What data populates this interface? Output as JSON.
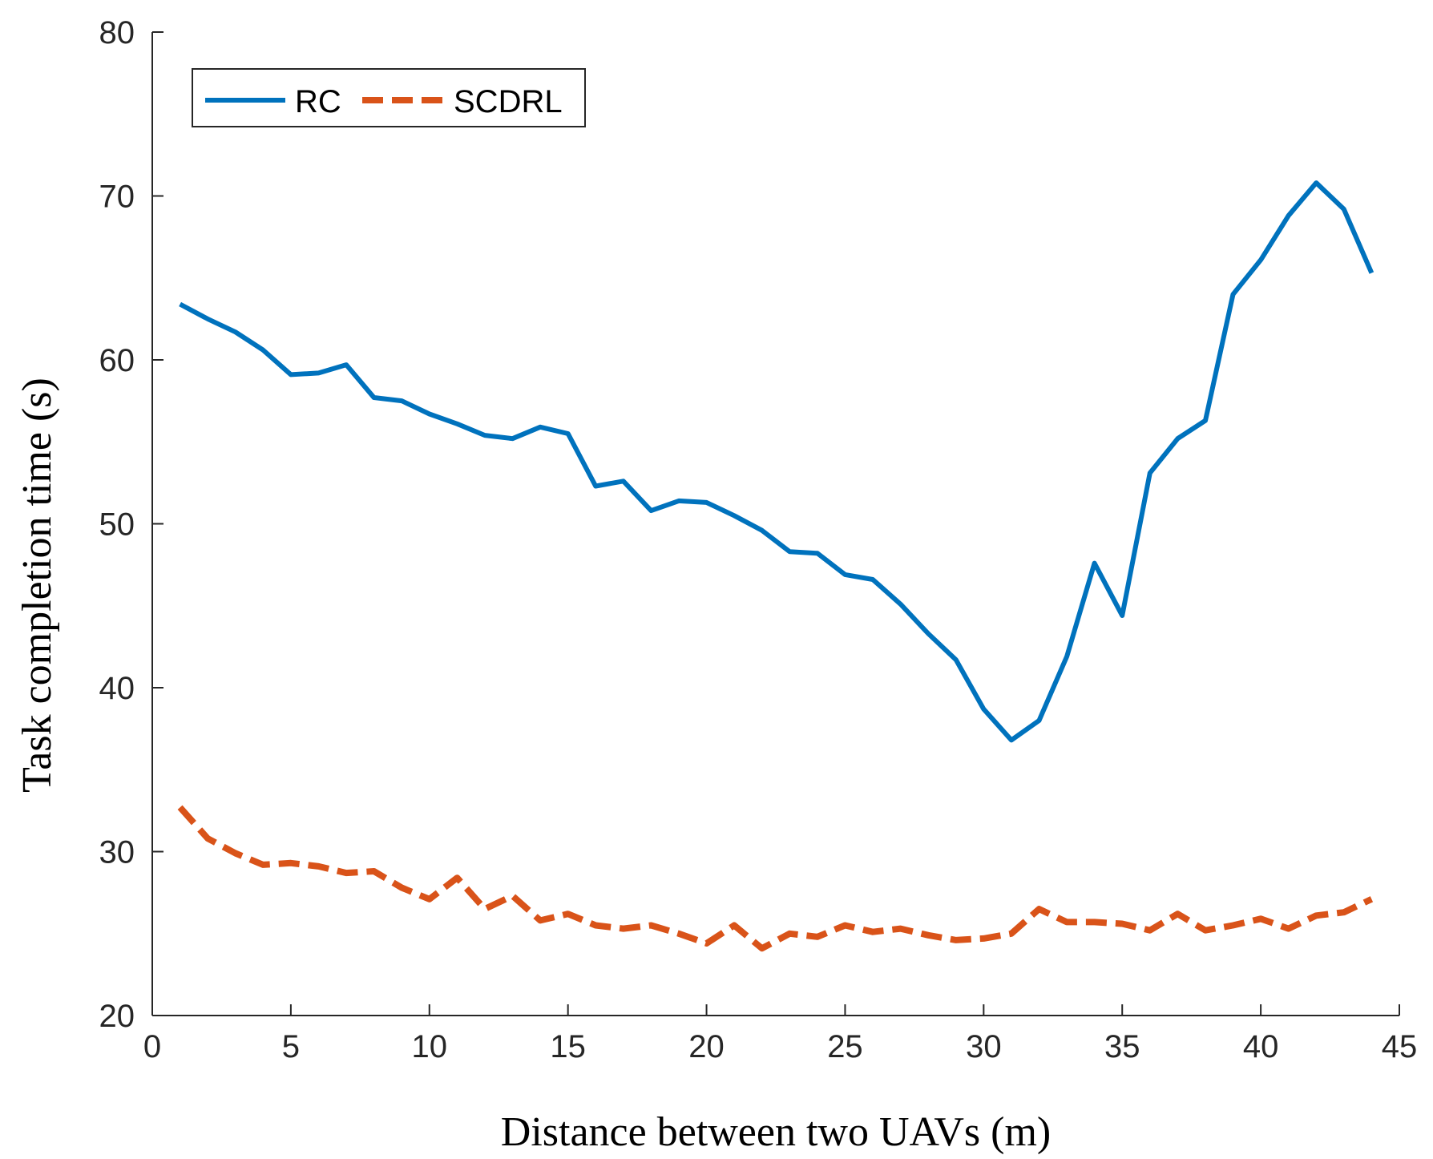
{
  "chart_data": {
    "type": "line",
    "xlabel": "Distance between two UAVs (m)",
    "ylabel": "Task completion time (s)",
    "xlim": [
      0,
      45
    ],
    "ylim": [
      20,
      80
    ],
    "xticks": [
      0,
      5,
      10,
      15,
      20,
      25,
      30,
      35,
      40,
      45
    ],
    "yticks": [
      20,
      30,
      40,
      50,
      60,
      70,
      80
    ],
    "grid": false,
    "legend_position": "top-left",
    "series": [
      {
        "name": "RC",
        "color": "#0072BD",
        "style": "solid",
        "x": [
          1,
          2,
          3,
          4,
          5,
          6,
          7,
          8,
          9,
          10,
          11,
          12,
          13,
          14,
          15,
          16,
          17,
          18,
          19,
          20,
          21,
          22,
          23,
          24,
          25,
          26,
          27,
          28,
          29,
          30,
          31,
          32,
          33,
          34,
          35,
          36,
          37,
          38,
          39,
          40,
          41,
          42,
          43,
          44
        ],
        "values": [
          63.4,
          62.5,
          61.7,
          60.6,
          59.1,
          59.2,
          59.7,
          57.7,
          57.5,
          56.7,
          56.1,
          55.4,
          55.2,
          55.9,
          55.5,
          52.3,
          52.6,
          50.8,
          51.4,
          51.3,
          50.5,
          49.6,
          48.3,
          48.2,
          46.9,
          46.6,
          45.1,
          43.3,
          41.7,
          38.7,
          36.8,
          38.0,
          41.9,
          47.6,
          44.4,
          53.1,
          55.2,
          56.3,
          64.0,
          66.1,
          68.8,
          70.8,
          69.2,
          65.3
        ]
      },
      {
        "name": "SCDRL",
        "color": "#D95319",
        "style": "dashed",
        "x": [
          1,
          2,
          3,
          4,
          5,
          6,
          7,
          8,
          9,
          10,
          11,
          12,
          13,
          14,
          15,
          16,
          17,
          18,
          19,
          20,
          21,
          22,
          23,
          24,
          25,
          26,
          27,
          28,
          29,
          30,
          31,
          32,
          33,
          34,
          35,
          36,
          37,
          38,
          39,
          40,
          41,
          42,
          43,
          44
        ],
        "values": [
          32.7,
          30.8,
          29.9,
          29.2,
          29.3,
          29.1,
          28.7,
          28.8,
          27.8,
          27.1,
          28.4,
          26.5,
          27.3,
          25.8,
          26.2,
          25.5,
          25.3,
          25.5,
          25.0,
          24.4,
          25.5,
          24.1,
          25.0,
          24.8,
          25.5,
          25.1,
          25.3,
          24.9,
          24.6,
          24.7,
          25.0,
          26.5,
          25.7,
          25.7,
          25.6,
          25.2,
          26.2,
          25.2,
          25.5,
          25.9,
          25.3,
          26.1,
          26.3,
          27.1
        ]
      }
    ]
  }
}
